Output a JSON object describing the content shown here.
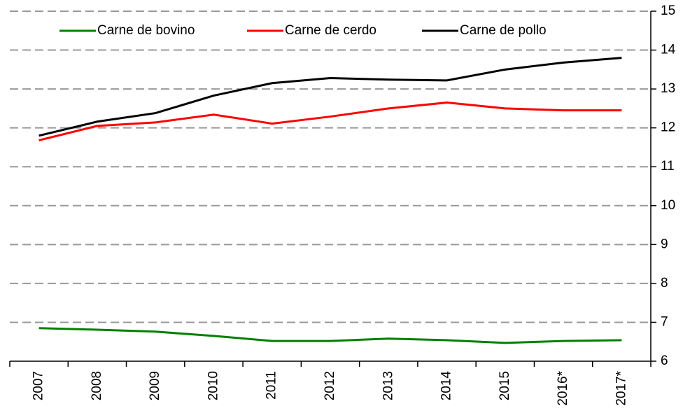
{
  "chart_data": {
    "type": "line",
    "categories": [
      "2007",
      "2008",
      "2009",
      "2010",
      "2011",
      "2012",
      "2013",
      "2014",
      "2015",
      "2016*",
      "2017*"
    ],
    "series": [
      {
        "name": "Carne de bovino",
        "color": "#008000",
        "values": [
          6.85,
          6.81,
          6.76,
          6.65,
          6.52,
          6.52,
          6.58,
          6.54,
          6.47,
          6.52,
          6.54
        ]
      },
      {
        "name": "Carne de cerdo",
        "color": "#ff0000",
        "values": [
          11.68,
          12.05,
          12.14,
          12.34,
          12.11,
          12.29,
          12.5,
          12.65,
          12.5,
          12.45,
          12.45
        ]
      },
      {
        "name": "Carne de pollo",
        "color": "#000000",
        "values": [
          11.8,
          12.16,
          12.38,
          12.83,
          13.15,
          13.28,
          13.24,
          13.22,
          13.5,
          13.68,
          13.8
        ]
      }
    ],
    "ylim": [
      6,
      15
    ],
    "yticks": [
      6,
      7,
      8,
      9,
      10,
      11,
      12,
      13,
      14,
      15
    ],
    "y_axis_side": "right",
    "grid": true,
    "legend": "top"
  }
}
